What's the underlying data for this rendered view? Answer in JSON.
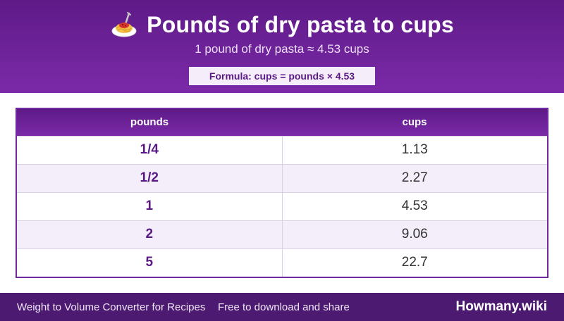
{
  "header": {
    "icon": "spaghetti-icon",
    "title": "Pounds of dry pasta to cups",
    "subtitle": "1 pound of dry pasta ≈ 4.53 cups",
    "formula": "Formula: cups = pounds × 4.53"
  },
  "table": {
    "columns": [
      "pounds",
      "cups"
    ],
    "rows": [
      [
        "1/4",
        "1.13"
      ],
      [
        "1/2",
        "2.27"
      ],
      [
        "1",
        "4.53"
      ],
      [
        "2",
        "9.06"
      ],
      [
        "5",
        "22.7"
      ]
    ]
  },
  "footer": {
    "left_text": "Weight to Volume Converter for Recipes",
    "mid_text": "Free to download and share",
    "brand": "Howmany.wiki"
  },
  "colors": {
    "header_purple": "#6a2196",
    "footer_purple": "#4d1a72",
    "accent_text": "#5a1a86"
  }
}
